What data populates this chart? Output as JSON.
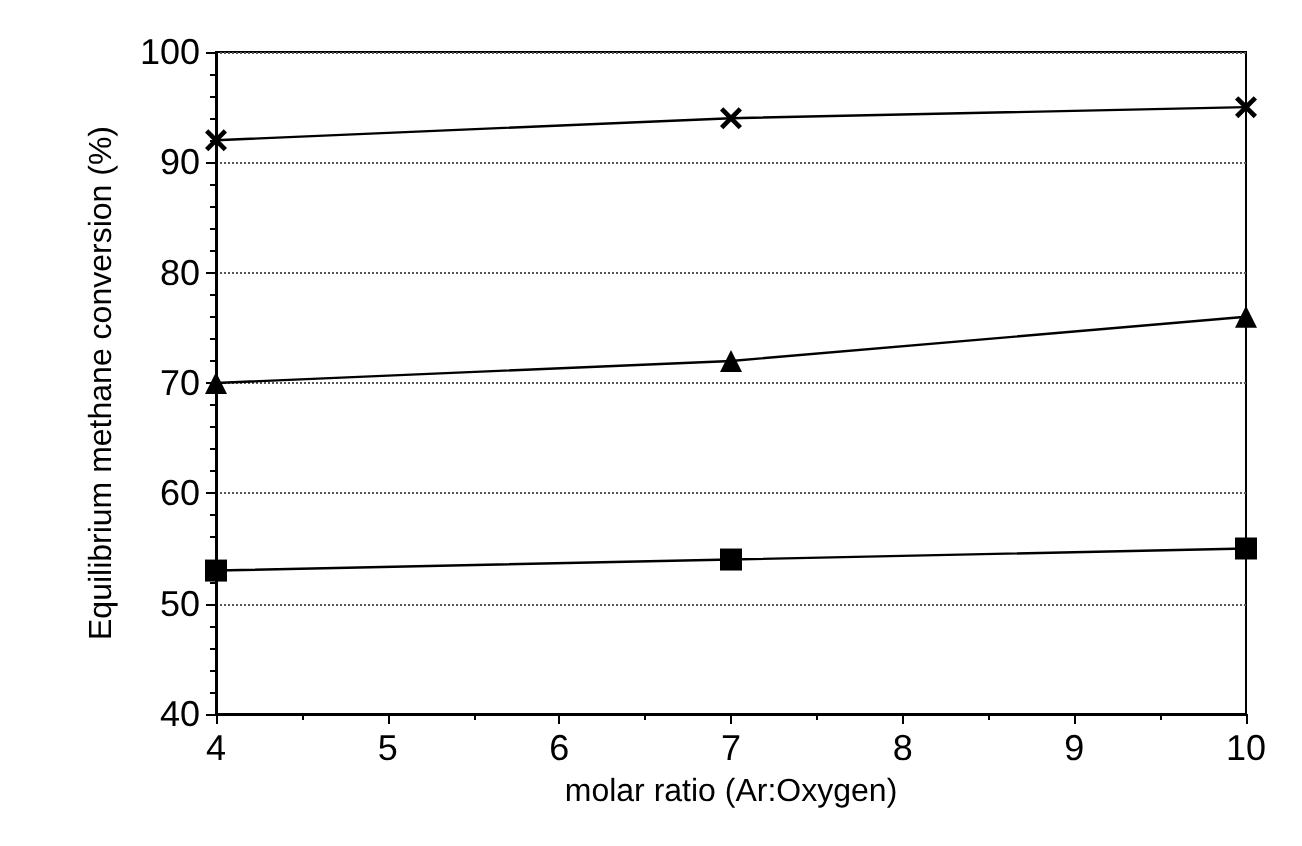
{
  "chart_data": {
    "type": "line",
    "xlabel": "molar ratio (Ar:Oxygen)",
    "ylabel": "Equilibrium methane conversion (%)",
    "x": [
      4,
      7,
      10
    ],
    "series": [
      {
        "color": "#000000",
        "marker": "cross",
        "values": [
          92,
          94,
          95
        ]
      },
      {
        "color": "#000000",
        "marker": "triangle",
        "values": [
          70,
          72,
          76
        ]
      },
      {
        "color": "#000000",
        "marker": "square",
        "values": [
          53,
          54,
          55
        ]
      }
    ],
    "xlim": [
      4,
      10
    ],
    "xticks": [
      4,
      5,
      6,
      7,
      8,
      9,
      10
    ],
    "ylim": [
      40,
      100
    ],
    "yticks": [
      40,
      50,
      60,
      70,
      80,
      90,
      100
    ],
    "grid": "y",
    "line_style": "solid"
  }
}
